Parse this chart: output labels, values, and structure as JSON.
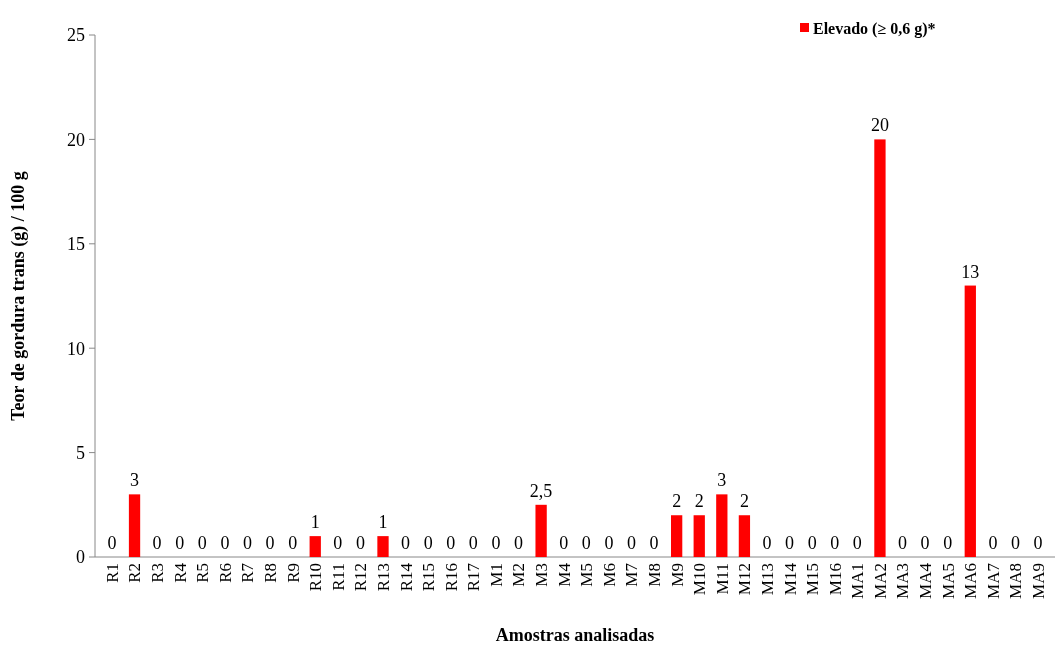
{
  "chart_data": {
    "type": "bar",
    "xlabel": "Amostras analisadas",
    "ylabel": "Teor de gordura trans (g) / 100 g",
    "categories": [
      "R1",
      "R2",
      "R3",
      "R4",
      "R5",
      "R6",
      "R7",
      "R8",
      "R9",
      "R10",
      "R11",
      "R12",
      "R13",
      "R14",
      "R15",
      "R16",
      "R17",
      "M1",
      "M2",
      "M3",
      "M4",
      "M5",
      "M6",
      "M7",
      "M8",
      "M9",
      "M10",
      "M11",
      "M12",
      "M13",
      "M14",
      "M15",
      "M16",
      "MA1",
      "MA2",
      "MA3",
      "MA4",
      "MA5",
      "MA6",
      "MA7",
      "MA8",
      "MA9"
    ],
    "series": [
      {
        "name": "Elevado (≥ 0,6 g)*",
        "color": "#ff0000",
        "values": [
          0,
          3,
          0,
          0,
          0,
          0,
          0,
          0,
          0,
          1,
          0,
          0,
          1,
          0,
          0,
          0,
          0,
          0,
          0,
          2.5,
          0,
          0,
          0,
          0,
          0,
          2,
          2,
          3,
          2,
          0,
          0,
          0,
          0,
          0,
          20,
          0,
          0,
          0,
          13,
          0,
          0,
          0
        ],
        "value_labels": [
          "0",
          "3",
          "0",
          "0",
          "0",
          "0",
          "0",
          "0",
          "0",
          "1",
          "0",
          "0",
          "1",
          "0",
          "0",
          "0",
          "0",
          "0",
          "0",
          "2,5",
          "0",
          "0",
          "0",
          "0",
          "0",
          "2",
          "2",
          "3",
          "2",
          "0",
          "0",
          "0",
          "0",
          "0",
          "20",
          "0",
          "0",
          "0",
          "13",
          "0",
          "0",
          "0"
        ]
      }
    ],
    "ylim": [
      0,
      25
    ],
    "yticks": [
      0,
      5,
      10,
      15,
      20,
      25
    ],
    "grid": false,
    "legend": "top right"
  }
}
